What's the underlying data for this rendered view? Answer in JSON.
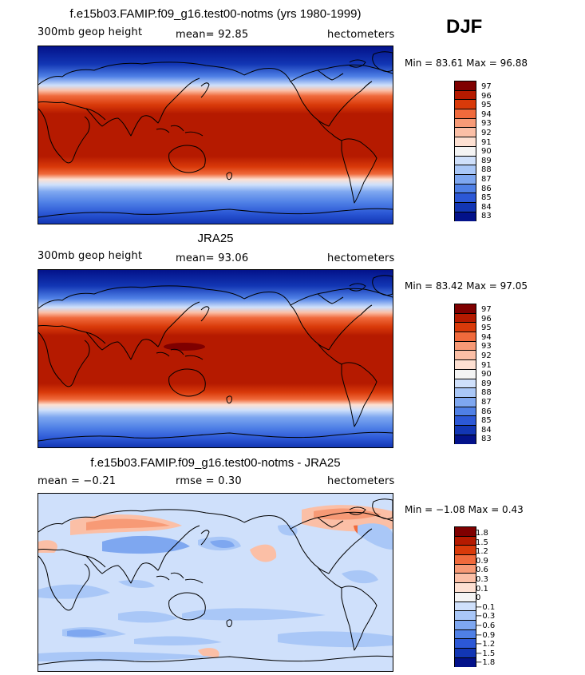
{
  "season": "DJF",
  "panels": [
    {
      "title": "f.e15b03.FAMIP.f09_g16.test00-notms (yrs 1980-1999)",
      "left_text": "300mb geop height",
      "stat_text": "mean=  92.85",
      "units": "hectometers",
      "minmax": "Min =  83.61 Max =  96.88",
      "levels": [
        "97",
        "96",
        "95",
        "94",
        "93",
        "92",
        "91",
        "90",
        "89",
        "88",
        "87",
        "86",
        "85",
        "84",
        "83"
      ]
    },
    {
      "title": "JRA25",
      "left_text": "300mb geop height",
      "stat_text": "mean=  93.06",
      "units": "hectometers",
      "minmax": "Min =  83.42 Max =  97.05",
      "levels": [
        "97",
        "96",
        "95",
        "94",
        "93",
        "92",
        "91",
        "90",
        "89",
        "88",
        "87",
        "86",
        "85",
        "84",
        "83"
      ]
    },
    {
      "title": "f.e15b03.FAMIP.f09_g16.test00-notms - JRA25",
      "left_text": "mean =  −0.21",
      "stat_text": "rmse =   0.30",
      "units": "hectometers",
      "minmax": "Min =  −1.08 Max =   0.43",
      "levels": [
        "1.8",
        "1.5",
        "1.2",
        "0.9",
        "0.6",
        "0.3",
        "0.1",
        "0",
        "−0.1",
        "−0.3",
        "−0.6",
        "−0.9",
        "−1.2",
        "−1.5",
        "−1.8"
      ]
    }
  ],
  "palette": [
    "#7f0000",
    "#b51a00",
    "#d93a0a",
    "#f06a3c",
    "#f79a76",
    "#fbbfa6",
    "#fde0d2",
    "#f4f4f4",
    "#cfe0fb",
    "#a9c7f7",
    "#7ea7f0",
    "#4f80e6",
    "#2c58d6",
    "#1236b4",
    "#03128a"
  ]
}
